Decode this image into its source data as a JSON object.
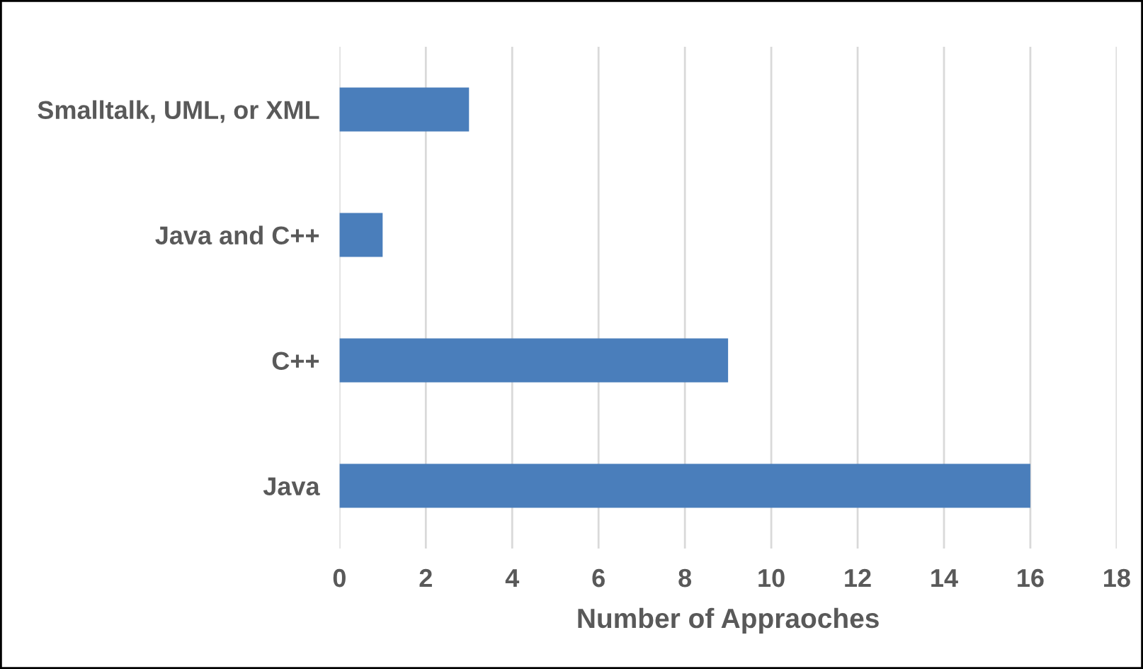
{
  "chart_data": {
    "type": "bar",
    "orientation": "horizontal",
    "xlabel": "Number of Appraoches",
    "categories": [
      "Smalltalk, UML, or XML",
      "Java and C++",
      "C++",
      "Java"
    ],
    "values": [
      3,
      1,
      9,
      16
    ],
    "color": "#4a7ebb",
    "xlim": [
      0,
      18
    ],
    "xticks": [
      0,
      2,
      4,
      6,
      8,
      10,
      12,
      14,
      16,
      18
    ],
    "grid": "x"
  }
}
